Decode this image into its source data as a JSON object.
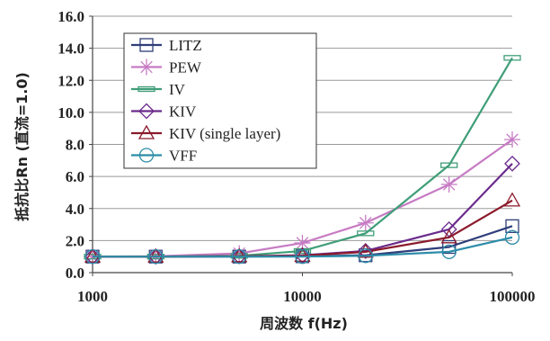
{
  "chart_data": {
    "type": "line",
    "xscale": "log",
    "xlim": [
      1000,
      100000
    ],
    "ylim": [
      0,
      16
    ],
    "xticks": [
      1000,
      10000,
      100000
    ],
    "xtick_labels": [
      "1000",
      "10000",
      "100000"
    ],
    "yticks": [
      0,
      2,
      4,
      6,
      8,
      10,
      12,
      14,
      16
    ],
    "ytick_labels": [
      "0.0",
      "2.0",
      "4.0",
      "6.0",
      "8.0",
      "10.0",
      "12.0",
      "14.0",
      "16.0"
    ],
    "xlabel": "周波数 f(Hz)",
    "ylabel": "抵抗比Rn (直流=1.0)",
    "grid": "horizontal",
    "legend_position": "upper-left",
    "x": [
      1000,
      2000,
      5000,
      10000,
      20000,
      50000,
      100000
    ],
    "series": [
      {
        "name": "LITZ",
        "color": "#2f3e7a",
        "marker": "square",
        "values": [
          1.0,
          1.0,
          1.0,
          1.02,
          1.08,
          1.6,
          2.9
        ]
      },
      {
        "name": "PEW",
        "color": "#c77bc4",
        "marker": "asterisk",
        "values": [
          1.0,
          1.02,
          1.2,
          1.85,
          3.1,
          5.5,
          8.3
        ]
      },
      {
        "name": "IV",
        "color": "#3f9e78",
        "marker": "dash",
        "values": [
          1.0,
          1.0,
          1.05,
          1.35,
          2.45,
          6.7,
          13.4
        ]
      },
      {
        "name": "KIV",
        "color": "#6a2a8c",
        "marker": "diamond",
        "values": [
          1.0,
          1.0,
          1.02,
          1.08,
          1.35,
          2.7,
          6.8
        ]
      },
      {
        "name": "KIV (single layer)",
        "color": "#8b1a2b",
        "marker": "triangle",
        "values": [
          1.0,
          1.0,
          1.02,
          1.05,
          1.3,
          2.2,
          4.5
        ]
      },
      {
        "name": "VFF",
        "color": "#2c8ca8",
        "marker": "circle",
        "values": [
          1.0,
          1.0,
          1.0,
          1.0,
          1.05,
          1.3,
          2.2
        ]
      }
    ]
  }
}
